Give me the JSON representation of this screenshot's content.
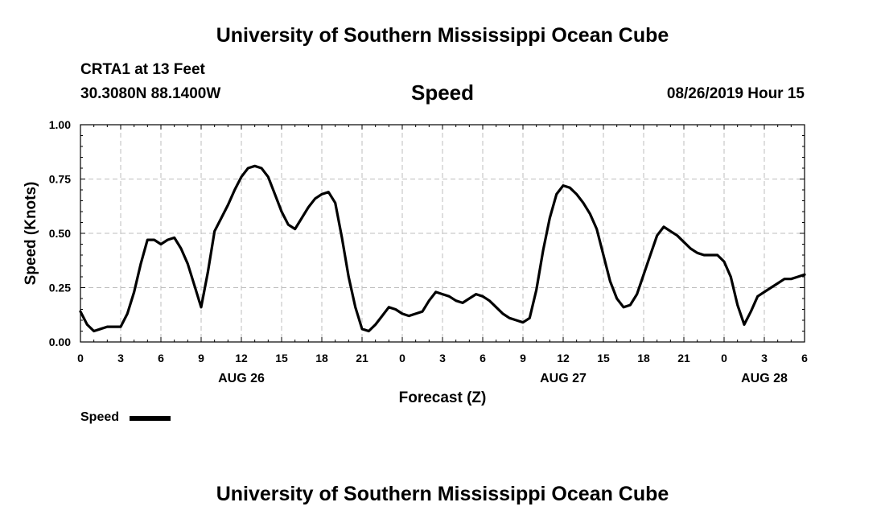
{
  "header": {
    "title": "University of Southern Mississippi Ocean Cube",
    "station": "CRTA1 at 13 Feet",
    "coordinates": "30.3080N 88.1400W",
    "datetime": "08/26/2019 Hour 15"
  },
  "footer": {
    "title": "University of Southern Mississippi Ocean Cube"
  },
  "legend": {
    "label": "Speed",
    "color": "#000000"
  },
  "chart_data": {
    "type": "line",
    "title": "Speed",
    "xlabel": "Forecast (Z)",
    "ylabel": "Speed (Knots)",
    "xlim": [
      0,
      54
    ],
    "ylim": [
      0,
      1.0
    ],
    "grid": true,
    "y_ticks": [
      0.0,
      0.25,
      0.5,
      0.75,
      1.0
    ],
    "y_tick_labels": [
      "0.00",
      "0.25",
      "0.50",
      "0.75",
      "1.00"
    ],
    "x_ticks": [
      0,
      3,
      6,
      9,
      12,
      15,
      18,
      21,
      24,
      27,
      30,
      33,
      36,
      39,
      42,
      45,
      48,
      51,
      54
    ],
    "x_tick_labels": [
      "0",
      "3",
      "6",
      "9",
      "12",
      "15",
      "18",
      "21",
      "0",
      "3",
      "6",
      "9",
      "12",
      "15",
      "18",
      "21",
      "0",
      "3",
      "6"
    ],
    "date_labels": [
      {
        "label": "AUG 26",
        "x": 12
      },
      {
        "label": "AUG 27",
        "x": 36
      },
      {
        "label": "AUG 28",
        "x": 51
      }
    ],
    "series": [
      {
        "name": "Speed",
        "x": [
          0,
          0.5,
          1,
          1.5,
          2,
          2.5,
          3,
          3.5,
          4,
          4.5,
          5,
          5.5,
          6,
          6.5,
          7,
          7.5,
          8,
          8.5,
          9,
          9.5,
          10,
          10.5,
          11,
          11.5,
          12,
          12.5,
          13,
          13.5,
          14,
          14.5,
          15,
          15.5,
          16,
          16.5,
          17,
          17.5,
          18,
          18.5,
          19,
          19.5,
          20,
          20.5,
          21,
          21.5,
          22,
          22.5,
          23,
          23.5,
          24,
          24.5,
          25,
          25.5,
          26,
          26.5,
          27,
          27.5,
          28,
          28.5,
          29,
          29.5,
          30,
          30.5,
          31,
          31.5,
          32,
          32.5,
          33,
          33.5,
          34,
          34.5,
          35,
          35.5,
          36,
          36.5,
          37,
          37.5,
          38,
          38.5,
          39,
          39.5,
          40,
          40.5,
          41,
          41.5,
          42,
          42.5,
          43,
          43.5,
          44,
          44.5,
          45,
          45.5,
          46,
          46.5,
          47,
          47.5,
          48,
          48.5,
          49,
          49.5,
          50,
          50.5,
          51,
          51.5,
          52,
          52.5,
          53,
          53.5,
          54
        ],
        "values": [
          0.14,
          0.08,
          0.05,
          0.06,
          0.07,
          0.07,
          0.07,
          0.13,
          0.23,
          0.36,
          0.47,
          0.47,
          0.45,
          0.47,
          0.48,
          0.43,
          0.36,
          0.26,
          0.16,
          0.32,
          0.51,
          0.57,
          0.63,
          0.7,
          0.76,
          0.8,
          0.81,
          0.8,
          0.76,
          0.68,
          0.6,
          0.54,
          0.52,
          0.57,
          0.62,
          0.66,
          0.68,
          0.69,
          0.64,
          0.48,
          0.3,
          0.16,
          0.06,
          0.05,
          0.08,
          0.12,
          0.16,
          0.15,
          0.13,
          0.12,
          0.13,
          0.14,
          0.19,
          0.23,
          0.22,
          0.21,
          0.19,
          0.18,
          0.2,
          0.22,
          0.21,
          0.19,
          0.16,
          0.13,
          0.11,
          0.1,
          0.09,
          0.11,
          0.24,
          0.42,
          0.57,
          0.68,
          0.72,
          0.71,
          0.68,
          0.64,
          0.59,
          0.52,
          0.4,
          0.28,
          0.2,
          0.16,
          0.17,
          0.22,
          0.31,
          0.4,
          0.49,
          0.53,
          0.51,
          0.49,
          0.46,
          0.43,
          0.41,
          0.4,
          0.4,
          0.4,
          0.37,
          0.3,
          0.17,
          0.08,
          0.14,
          0.21,
          0.23,
          0.25,
          0.27,
          0.29,
          0.29,
          0.3,
          0.31
        ]
      }
    ]
  }
}
